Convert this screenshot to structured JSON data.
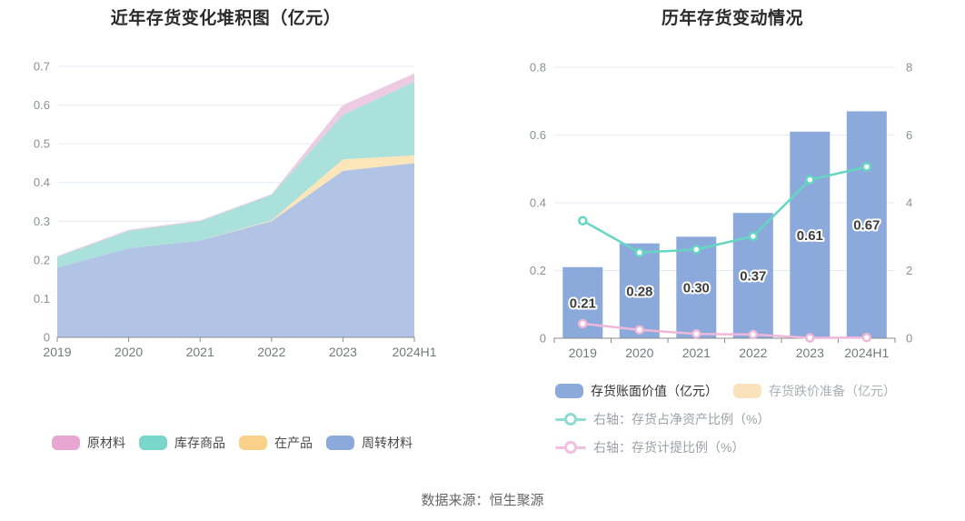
{
  "page": {
    "footer": "数据来源：恒生聚源",
    "background": "#ffffff"
  },
  "style": {
    "grid_color": "#E4EAF5",
    "axis_color": "#898B90",
    "y_label_color": "#8C8F96",
    "x_label_color": "#75787D",
    "title_color": "#2B2B2B",
    "bar_label_color": "#3D3D3D",
    "legend_text_color": "#4A4A4A",
    "footer_color": "#666666"
  },
  "chart_data": [
    {
      "type": "area",
      "stacked": true,
      "title": "近年存货变化堆积图（亿元）",
      "categories": [
        "2019",
        "2020",
        "2021",
        "2022",
        "2023",
        "2024H1"
      ],
      "ylim": [
        0,
        0.7
      ],
      "y_tick_labels": [
        "0",
        "0.1",
        "0.2",
        "0.3",
        "0.4",
        "0.5",
        "0.6",
        "0.7"
      ],
      "grid": true,
      "legend_position": "bottom-left",
      "series": [
        {
          "name": "周转材料",
          "color": "#8CA9DB",
          "fill": "#B2C4E6",
          "values": [
            0.18,
            0.23,
            0.25,
            0.3,
            0.43,
            0.45
          ]
        },
        {
          "name": "在产品",
          "color": "#FAD189",
          "fill": "#FCE5B9",
          "values": [
            0,
            0,
            0,
            0.002,
            0.03,
            0.02
          ]
        },
        {
          "name": "库存商品",
          "color": "#79D6CA",
          "fill": "#ABE1DB",
          "values": [
            0.028,
            0.045,
            0.05,
            0.066,
            0.115,
            0.19
          ]
        },
        {
          "name": "原材料",
          "color": "#E8A7D2",
          "fill": "#ECCBE3",
          "values": [
            0.002,
            0.003,
            0.002,
            0.002,
            0.025,
            0.022
          ]
        }
      ],
      "legend": [
        {
          "label": "原材料",
          "color": "#E8A7D2"
        },
        {
          "label": "库存商品",
          "color": "#79D6CA"
        },
        {
          "label": "在产品",
          "color": "#FAD189"
        },
        {
          "label": "周转材料",
          "color": "#8CA9DB"
        }
      ]
    },
    {
      "type": "bar",
      "title": "历年存货变动情况",
      "categories": [
        "2019",
        "2020",
        "2021",
        "2022",
        "2023",
        "2024H1"
      ],
      "left_axis": {
        "ylim": [
          0,
          0.8
        ],
        "tick_labels": [
          "0",
          "0.2",
          "0.4",
          "0.6",
          "0.8"
        ]
      },
      "right_axis": {
        "ylim": [
          0,
          8
        ],
        "tick_labels": [
          "0",
          "2",
          "4",
          "6",
          "8"
        ]
      },
      "bar_series": {
        "name": "存货账面价值（亿元）",
        "color": "#8CA9DB",
        "values": [
          0.21,
          0.28,
          0.3,
          0.37,
          0.61,
          0.67
        ],
        "labels": [
          "0.21",
          "0.28",
          "0.30",
          "0.37",
          "0.61",
          "0.67"
        ]
      },
      "line_series": [
        {
          "name": "右轴：存货占净资产比例（%）",
          "color": "#65D6C1",
          "axis": "right",
          "values": [
            3.47,
            2.53,
            2.62,
            3.01,
            4.68,
            5.06
          ]
        },
        {
          "name": "右轴：存货计提比例（%）",
          "color": "#F0B8D8",
          "axis": "right",
          "values": [
            0.43,
            0.25,
            0.13,
            0.11,
            0.01,
            0.02
          ]
        }
      ],
      "legend": [
        {
          "type": "rect",
          "label": "存货账面价值（亿元）",
          "color": "#8CA9DB",
          "text_color": "#333333"
        },
        {
          "type": "rect",
          "label": "存货跌价准备（亿元）",
          "color": "#FAE3BC",
          "text_color": "#ABAEB5"
        },
        {
          "type": "line",
          "label": "右轴：存货占净资产比例（%）",
          "color": "#8FDCD4",
          "text_color": "#9CA0A8"
        },
        {
          "type": "line",
          "label": "右轴：存货计提比例（%）",
          "color": "#F2BFDD",
          "text_color": "#9CA0A8"
        }
      ]
    }
  ]
}
